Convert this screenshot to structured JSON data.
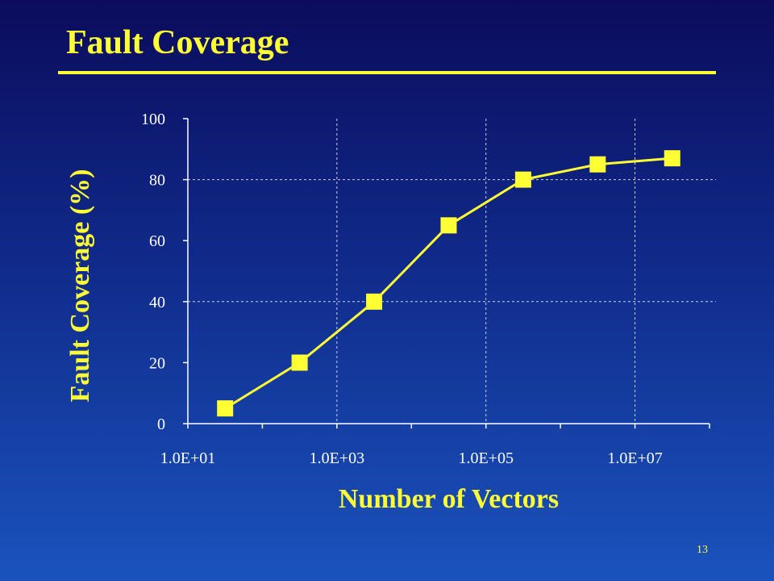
{
  "slide": {
    "title": "Fault Coverage",
    "page_number": "13"
  },
  "colors": {
    "accent": "#ffff33",
    "tick_text": "#ffffff",
    "axis": "#ffffff",
    "gridline": "#c9cfe6"
  },
  "chart_data": {
    "type": "line",
    "xlabel": "Number of Vectors",
    "ylabel": "Fault Coverage (%)",
    "x_scale": "log",
    "x_log_range": [
      10,
      100000000
    ],
    "ylim": [
      0,
      100
    ],
    "y_ticks": [
      0,
      20,
      40,
      60,
      80,
      100
    ],
    "y_tick_labels": [
      "0",
      "20",
      "40",
      "60",
      "80",
      "100"
    ],
    "x_tick_labels": [
      "1.0E+01",
      "1.0E+03",
      "1.0E+05",
      "1.0E+07"
    ],
    "x_tick_values": [
      10,
      1000,
      100000,
      10000000
    ],
    "vertical_gridlines_at": [
      1000,
      100000,
      10000000
    ],
    "horizontal_gridlines_at": [
      40,
      80
    ],
    "series": [
      {
        "x": [
          31.6,
          316,
          3160,
          31600,
          316000,
          3160000,
          31600000
        ],
        "y": [
          5,
          20,
          40,
          65,
          80,
          85,
          87
        ]
      }
    ],
    "marker": "square",
    "grid": true,
    "legend": "none"
  }
}
